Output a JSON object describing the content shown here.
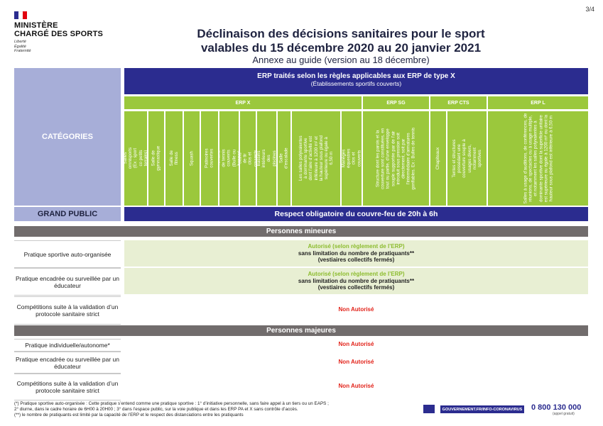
{
  "page_number": "3/4",
  "logo": {
    "line1": "MINISTÈRE",
    "line2": "CHARGÉ DES SPORTS",
    "motto": [
      "Liberté",
      "Égalité",
      "Fraternité"
    ]
  },
  "title_line1": "Déclinaison des décisions sanitaires pour le sport",
  "title_line2": "valables du 15 décembre 2020 au 20 janvier 2021",
  "subtitle": "Annexe au guide (version au 18 décembre)",
  "categories_label": "CATÉGORIES",
  "erpx": {
    "line1": "ERP traités selon les règles applicables aux ERP de type X",
    "line2": "(Établissements sportifs couverts)"
  },
  "groups": [
    "ERP X",
    "ERP SG",
    "ERP CTS",
    "ERP L"
  ],
  "columns": [
    "Salles omnisports (Ex : sport co petits terrains)",
    "Salle de gymnastique",
    "Salle de fitness",
    "Squash",
    "Patinoires couvertes",
    "Terrains de tennis couverts (Bulle ou hangar)",
    "Stand de tir clos et couverts",
    "Bassins intérieurs des piscines",
    "Salle d’escalade",
    "Les salles polyvalentes à dominante sportive dont l’aire d’activité est inférieure à 1200 m² et la hauteur sous plafond supérieure ou égale à 6,50 m",
    "Manèges équestres clos et couverts",
    "Structure dont les parois et la couverture sont constituées, en tout ou partie, d’une enveloppe souple supportée par de l’air introduit sous pression soit directement, soit par l’intermédiaire d’armatures gonflables. Ex : Bulles de tennis",
    "Chapiteaux",
    "Tentes et structures possédant une couverture souple à usages divers, notamment sportives",
    "Salles à usage d’auditions, de conférences, de réunions, de spectacles ou à usage multiple, et notamment les salles polyvalentes à dominante sportive dont la superficie unitaire est supérieure ou égale à 1200 m² ou dont la hauteur sous plafond est inférieure à 6,50 m"
  ],
  "grand_public": {
    "label": "GRAND PUBLIC",
    "value": "Respect obligatoire du couvre-feu de 20h à 6h"
  },
  "sections": {
    "minors": "Personnes mineures",
    "adults": "Personnes majeures"
  },
  "rows": {
    "m1_label": "Pratique sportive auto-organisée",
    "m1_l1": "Autorisé (selon règlement de l’ERP)",
    "m1_l2": "sans limitation du nombre de pratiquants**",
    "m1_l3": "(vestiaires collectifs fermés)",
    "m2_label": "Pratique encadrée ou surveillée par un éducateur",
    "m2_l1": "Autorisé (selon règlement de l’ERP)",
    "m2_l2": "sans limitation du nombre de pratiquants**",
    "m2_l3": "(vestiaires collectifs fermés)",
    "m3_label": "Compétitions suite à la validation d’un protocole sanitaire strict",
    "m3_val": "Non Autorisé",
    "a1_label": "Pratique individuelle/autonome*",
    "a1_val": "Non Autorisé",
    "a2_label": "Pratique encadrée ou surveillée par un éducateur",
    "a2_val": "Non Autorisé",
    "a3_label": "Compétitions suite à la validation d’un protocole sanitaire strict",
    "a3_val": "Non Autorisé"
  },
  "footnotes": [
    "(*) Pratique sportive auto-organisée : Cette pratique s’entend comme une pratique sportive : 1° d’initiative personnelle, sans faire appel à un tiers ou un EAPS ;",
    "2° diurne, dans le cadre horaire de 6H00 à 20H00 ; 3° dans l’espace public, sur la voie publique et dans les ERP PA et X sans contrôle d’accès.",
    "(**) le nombre de pratiquants est limité par la capacité de l’ERP et le respect des distanciations entre les pratiquants"
  ],
  "gouv_label": "GOUVERNEMENT.FR/INFO-CORONAVIRUS",
  "phone": "0 800 130 000",
  "phone_note": "(appel gratuit)",
  "colors": {
    "navy": "#2b2c8f",
    "green": "#9bc83c",
    "lavender": "#a7aed8",
    "grey": "#716c6c",
    "red": "#e2231a"
  }
}
